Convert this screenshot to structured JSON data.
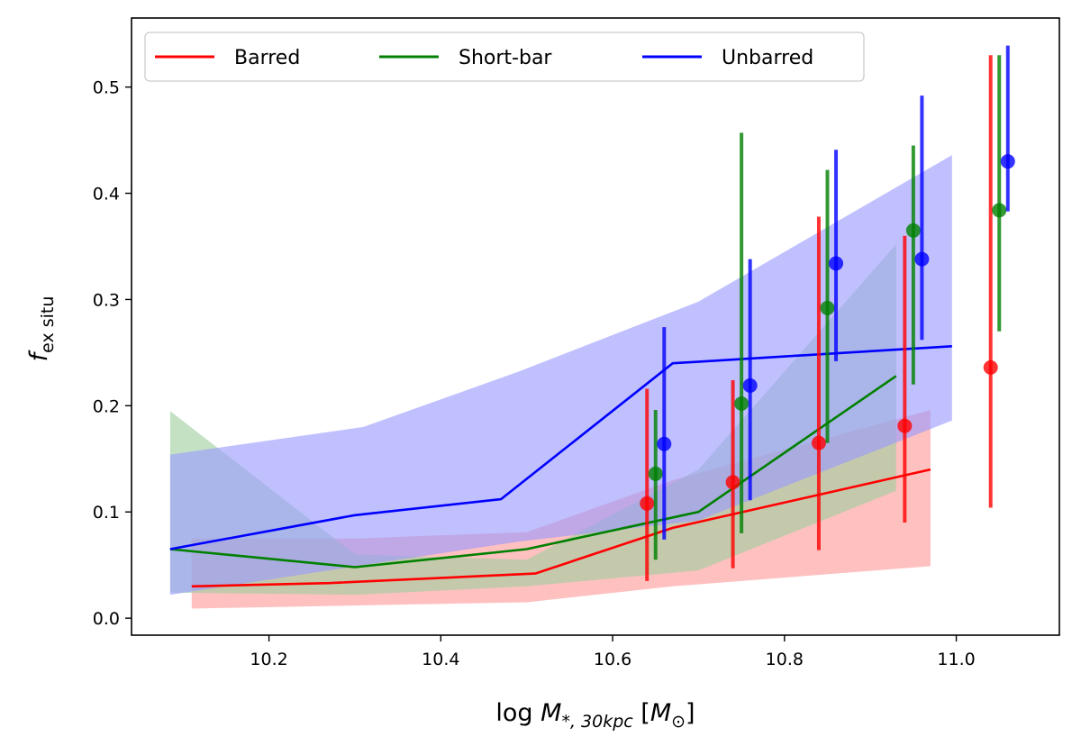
{
  "chart_data": {
    "type": "line",
    "xlabel": {
      "prefix": "log ",
      "symbol": "M",
      "sub": "*, 30kpc",
      "unit_open": " [",
      "unit_symbol": "M",
      "unit_sub": "⊙",
      "unit_close": "]"
    },
    "ylabel": {
      "symbol": "f",
      "sub": "ex situ"
    },
    "xlim": [
      10.04,
      11.12
    ],
    "ylim": [
      -0.016,
      0.565
    ],
    "xticks": [
      10.2,
      10.4,
      10.6,
      10.8,
      11.0
    ],
    "xtick_labels": [
      "10.2",
      "10.4",
      "10.6",
      "10.8",
      "11.0"
    ],
    "yticks": [
      0.0,
      0.1,
      0.2,
      0.3,
      0.4,
      0.5
    ],
    "ytick_labels": [
      "0.0",
      "0.1",
      "0.2",
      "0.3",
      "0.4",
      "0.5"
    ],
    "legend": {
      "placement": "upper-left",
      "ncol": 3
    },
    "series": [
      {
        "name": "Barred",
        "color": "#ff0000",
        "band_color": "#ff9999",
        "line": {
          "x": [
            10.11,
            10.27,
            10.51,
            10.67,
            10.97
          ],
          "y": [
            0.03,
            0.033,
            0.042,
            0.085,
            0.14
          ]
        },
        "band": {
          "x": [
            10.11,
            10.3,
            10.5,
            10.67,
            10.97
          ],
          "lower": [
            0.009,
            0.012,
            0.015,
            0.03,
            0.049
          ],
          "upper": [
            0.075,
            0.075,
            0.081,
            0.13,
            0.196
          ]
        },
        "points": {
          "x": [
            10.64,
            10.74,
            10.84,
            10.94,
            11.04
          ],
          "y": [
            0.108,
            0.128,
            0.165,
            0.181,
            0.236
          ],
          "lower": [
            0.035,
            0.047,
            0.064,
            0.09,
            0.104
          ],
          "upper": [
            0.216,
            0.224,
            0.378,
            0.36,
            0.53
          ]
        }
      },
      {
        "name": "Short-bar",
        "color": "#008000",
        "band_color": "#9fcf9f",
        "line": {
          "x": [
            10.085,
            10.3,
            10.5,
            10.7,
            10.93
          ],
          "y": [
            0.065,
            0.048,
            0.065,
            0.1,
            0.228
          ]
        },
        "band": {
          "x": [
            10.085,
            10.3,
            10.5,
            10.7,
            10.93
          ],
          "lower": [
            0.024,
            0.022,
            0.03,
            0.045,
            0.12
          ],
          "upper": [
            0.195,
            0.06,
            0.055,
            0.14,
            0.352
          ]
        },
        "points": {
          "x": [
            10.65,
            10.75,
            10.85,
            10.95,
            11.05
          ],
          "y": [
            0.136,
            0.202,
            0.292,
            0.365,
            0.384
          ],
          "lower": [
            0.055,
            0.08,
            0.165,
            0.22,
            0.27
          ],
          "upper": [
            0.196,
            0.457,
            0.422,
            0.445,
            0.53
          ]
        }
      },
      {
        "name": "Unbarred",
        "color": "#0000ff",
        "band_color": "#9999ff",
        "line": {
          "x": [
            10.085,
            10.3,
            10.47,
            10.67,
            10.995
          ],
          "y": [
            0.065,
            0.097,
            0.112,
            0.24,
            0.256
          ]
        },
        "band": {
          "x": [
            10.085,
            10.31,
            10.49,
            10.7,
            10.995
          ],
          "lower": [
            0.022,
            0.05,
            0.072,
            0.092,
            0.186
          ],
          "upper": [
            0.154,
            0.18,
            0.232,
            0.298,
            0.436
          ]
        },
        "points": {
          "x": [
            10.66,
            10.76,
            10.86,
            10.96,
            11.06
          ],
          "y": [
            0.164,
            0.219,
            0.334,
            0.338,
            0.43
          ],
          "lower": [
            0.074,
            0.111,
            0.242,
            0.262,
            0.383
          ],
          "upper": [
            0.274,
            0.338,
            0.441,
            0.492,
            0.539
          ]
        }
      }
    ]
  }
}
